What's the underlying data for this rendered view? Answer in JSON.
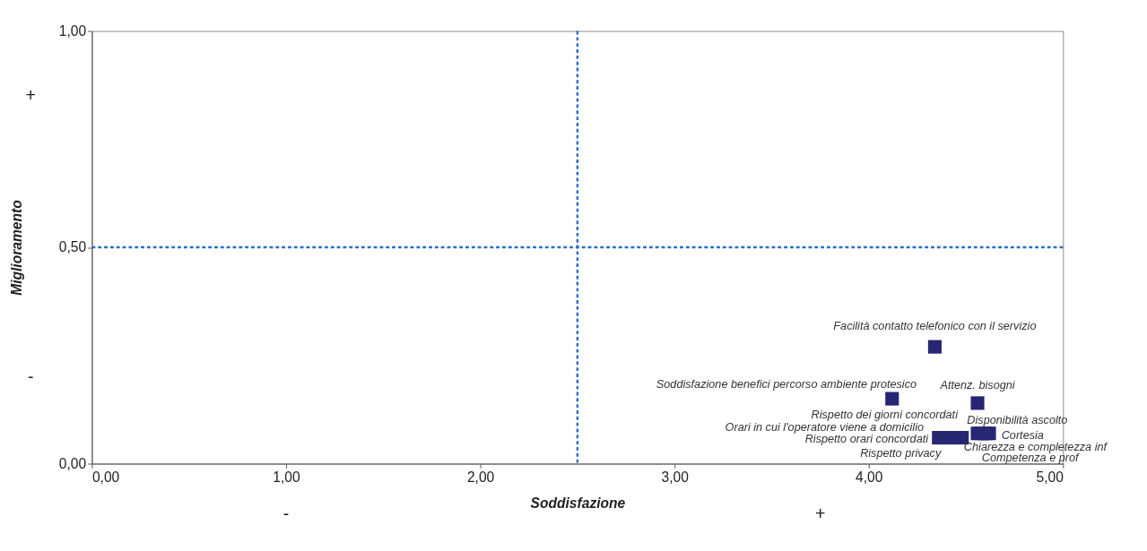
{
  "chart_data": {
    "type": "scatter",
    "xlabel": "Soddisfazione",
    "ylabel": "Miglioramento",
    "x": [
      4.34,
      4.12,
      4.56,
      4.36,
      4.48,
      4.4,
      4.44,
      4.56,
      4.62,
      4.58,
      4.6
    ],
    "values": [
      0.27,
      0.15,
      0.14,
      0.06,
      0.06,
      0.06,
      0.06,
      0.07,
      0.07,
      0.07,
      0.07
    ],
    "value_labels": [
      "Facilità  contatto telefonico con il servizio",
      "Soddisfazione benefici percorso ambiente protesico",
      "Attenz. bisogni",
      "Rispetto orari concordati",
      "Rispetto privacy",
      "Orari in cui l'operatore viene a domicilio",
      "Rispetto dei giorni concordati",
      "Disponibilità ascolto",
      "Cortesia",
      "Chiarezza e completezza inf",
      "Competenza e prof"
    ],
    "color": "#262673",
    "marker": "square",
    "xlim": [
      0,
      5
    ],
    "xticks": [
      {
        "value": 0,
        "label": "0,00"
      },
      {
        "value": 1,
        "label": "1,00"
      },
      {
        "value": 2,
        "label": "2,00"
      },
      {
        "value": 3,
        "label": "3,00"
      },
      {
        "value": 4,
        "label": "4,00"
      },
      {
        "value": 5,
        "label": "5,00"
      }
    ],
    "ylim": [
      0,
      1
    ],
    "yticks": [
      {
        "value": 0,
        "label": "0,00"
      },
      {
        "value": 0.5,
        "label": "0,50"
      },
      {
        "value": 1,
        "label": "1,00"
      }
    ],
    "ref_lines": [
      {
        "axis": "x",
        "value": 2.5,
        "color": "#2e6fc4",
        "line_style": "dashed"
      },
      {
        "axis": "y",
        "value": 0.5,
        "color": "#2e6fc4",
        "line_style": "dashed"
      }
    ],
    "annotations": [
      "+",
      "-",
      "-",
      "+"
    ],
    "grid": false
  }
}
